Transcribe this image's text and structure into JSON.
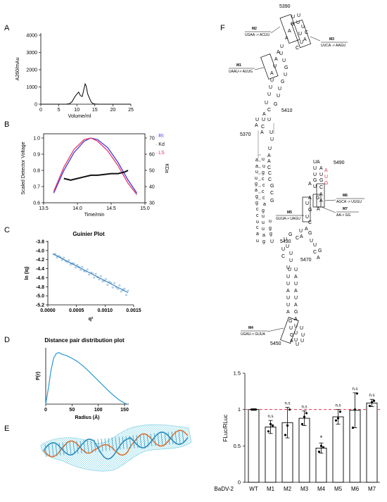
{
  "panels": {
    "A": {
      "letter": "A"
    },
    "B": {
      "letter": "B"
    },
    "C": {
      "letter": "C"
    },
    "D": {
      "letter": "D"
    },
    "E": {
      "letter": "E"
    },
    "F": {
      "letter": "F"
    }
  },
  "chart_data": [
    {
      "id": "A",
      "type": "line",
      "xlabel": "Volume/ml",
      "ylabel": "A260/mAu",
      "xlim": [
        0,
        25
      ],
      "ylim": [
        0,
        4000
      ],
      "xticks": [
        "0",
        "5",
        "10",
        "15",
        "20",
        "25"
      ],
      "yticks": [
        "0",
        "1000",
        "2000",
        "3000",
        "4000"
      ],
      "series": [
        {
          "x": [
            0,
            7,
            8,
            8.7,
            9.5,
            10,
            10.5,
            11,
            11.5,
            12,
            12.3,
            12.6,
            13,
            13.5,
            14,
            14.5,
            15,
            16,
            18,
            20,
            22,
            25
          ],
          "y": [
            0,
            0,
            30,
            150,
            450,
            580,
            700,
            500,
            450,
            900,
            1180,
            1050,
            600,
            350,
            120,
            40,
            10,
            0,
            0,
            0,
            0,
            0
          ]
        }
      ]
    },
    {
      "id": "B",
      "type": "line",
      "xlabel": "Time/min",
      "ylabel": "Scaled Detector Voltage",
      "y2label": "KDa",
      "xlim": [
        13.5,
        15.0
      ],
      "ylim": [
        0.6,
        1.0
      ],
      "y2lim": [
        30,
        70
      ],
      "xticks": [
        "13.5",
        "14.0",
        "14.5",
        "15.0"
      ],
      "yticks": [
        "0.6",
        "0.7",
        "0.8",
        "0.9",
        "1.0"
      ],
      "y2ticks": [
        "30",
        "40",
        "50",
        "60",
        "70"
      ],
      "legend": [
        "RI",
        "Kd",
        "LS"
      ],
      "legend_colors": [
        "#3a3ad6",
        "#111111",
        "#e8336b"
      ],
      "series": [
        {
          "name": "RI",
          "axis": "y",
          "x": [
            13.65,
            13.8,
            13.95,
            14.1,
            14.2,
            14.3,
            14.45,
            14.6,
            14.75,
            14.88
          ],
          "y": [
            0.66,
            0.8,
            0.91,
            0.98,
            1.0,
            0.99,
            0.94,
            0.85,
            0.74,
            0.66
          ]
        },
        {
          "name": "LS",
          "axis": "y",
          "x": [
            13.65,
            13.8,
            13.95,
            14.1,
            14.2,
            14.3,
            14.45,
            14.6,
            14.75,
            14.88
          ],
          "y": [
            0.67,
            0.82,
            0.93,
            0.99,
            1.0,
            0.98,
            0.92,
            0.83,
            0.72,
            0.65
          ]
        },
        {
          "name": "Kd",
          "axis": "y2",
          "x": [
            13.8,
            13.9,
            14.0,
            14.1,
            14.2,
            14.3,
            14.4,
            14.5,
            14.6,
            14.7,
            14.75
          ],
          "y": [
            45,
            44,
            45,
            46,
            47,
            47,
            47.5,
            48,
            48,
            49,
            50
          ]
        }
      ]
    },
    {
      "id": "C",
      "type": "scatter",
      "title": "Guinier Plot",
      "xlabel": "q²",
      "ylabel": "ln (Iq)",
      "xlim": [
        0,
        0.0015
      ],
      "ylim": [
        -5.2,
        -3.8
      ],
      "xticks": [
        "0.0000",
        "0.0005",
        "0.0010",
        "0.0015"
      ],
      "yticks": [
        "-3.8",
        "-4.0",
        "-4.2",
        "-4.4",
        "-4.6",
        "-4.8",
        "-5.0",
        "-5.2"
      ],
      "fit": {
        "x": [
          0.0001,
          0.0014
        ],
        "y": [
          -4.08,
          -4.93
        ]
      }
    },
    {
      "id": "D",
      "type": "line",
      "title": "Distance pair distribution plot",
      "xlabel": "Radius (Å)",
      "ylabel": "P(r)",
      "xlim": [
        0,
        150
      ],
      "xticks": [
        "0",
        "50",
        "100",
        "150"
      ],
      "series": [
        {
          "x": [
            0,
            5,
            10,
            15,
            20,
            25,
            30,
            40,
            50,
            60,
            70,
            80,
            90,
            100,
            110,
            120,
            130,
            140,
            150,
            155
          ],
          "y": [
            0,
            0.3,
            0.65,
            0.88,
            0.97,
            0.99,
            0.96,
            0.93,
            0.88,
            0.82,
            0.74,
            0.65,
            0.55,
            0.45,
            0.35,
            0.25,
            0.16,
            0.08,
            0.02,
            0
          ]
        }
      ]
    },
    {
      "id": "F",
      "type": "bar",
      "xprefix": "BaDV-2",
      "categories": [
        "WT",
        "M1",
        "M2",
        "M3",
        "M4",
        "M5",
        "M6",
        "M7"
      ],
      "values": [
        1.0,
        0.76,
        0.82,
        0.88,
        0.47,
        0.9,
        0.99,
        1.09
      ],
      "errors": [
        0.01,
        0.09,
        0.21,
        0.1,
        0.07,
        0.1,
        0.24,
        0.05
      ],
      "points": [
        [
          1,
          1,
          1
        ],
        [
          0.7,
          0.8,
          0.78
        ],
        [
          0.65,
          0.78,
          1.0
        ],
        [
          0.8,
          0.9,
          0.95
        ],
        [
          0.42,
          0.5,
          0.48
        ],
        [
          0.85,
          0.88,
          0.97
        ],
        [
          0.75,
          1.0,
          1.22
        ],
        [
          1.05,
          1.1,
          1.12
        ]
      ],
      "significance": [
        "",
        "n.s",
        "n.s",
        "n.s",
        "*",
        "n.s",
        "n.s",
        "n.s"
      ],
      "ylabel": "FLuc/RLuc",
      "ylim": [
        0,
        1.5
      ],
      "yticks": [
        "0",
        "0.5",
        "1",
        "1.5"
      ],
      "refline": 1.0
    }
  ],
  "rna": {
    "positions": [
      "5390",
      "5410",
      "5370",
      "5490",
      "5430",
      "5470",
      "5450"
    ],
    "mutations": [
      {
        "id": "M2",
        "change": "UGAA -> ACUU"
      },
      {
        "id": "M3",
        "change": "UUCA -> AAGU"
      },
      {
        "id": "M1",
        "change": "UAAU-> AUUG"
      },
      {
        "id": "M6",
        "change": "AGCA -> UUGU"
      },
      {
        "id": "M7",
        "change": "AA-> GG"
      },
      {
        "id": "M5",
        "change": "GUUA-> UAGU"
      },
      {
        "id": "M4",
        "change": "UGAU-> GUUA"
      }
    ]
  }
}
